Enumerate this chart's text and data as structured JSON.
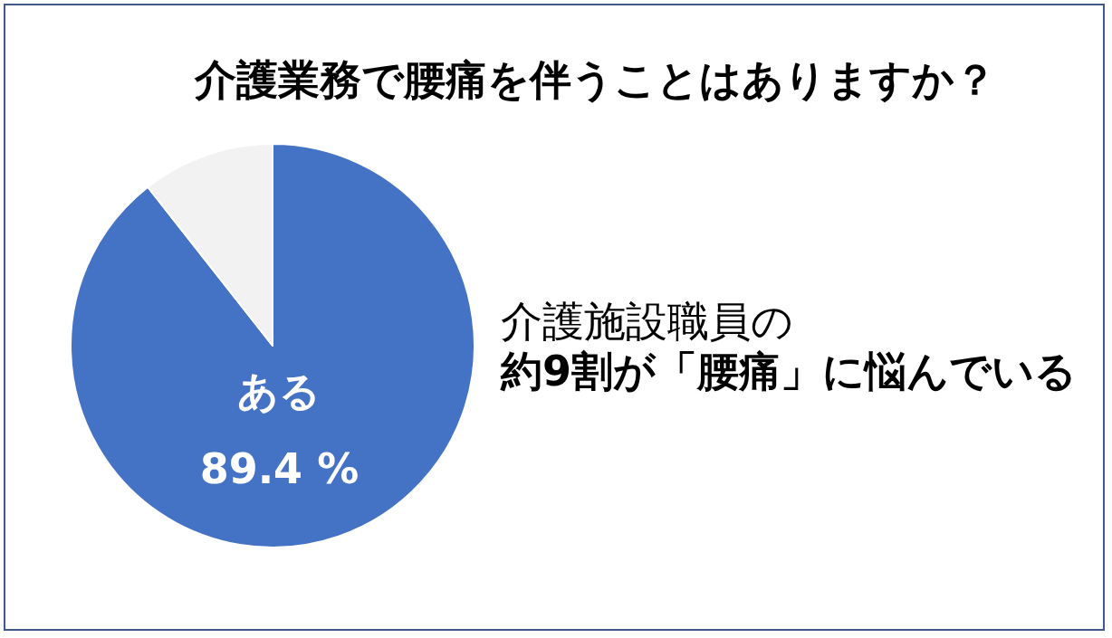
{
  "chart_data": {
    "type": "pie",
    "title": "介護業務で腰痛を伴うことはありますか？",
    "categories": [
      "ある",
      null
    ],
    "values": [
      89.4,
      10.6
    ],
    "colors": [
      "#4472c4",
      "#f2f2f2"
    ],
    "value_labels": [
      "89.4 %",
      null
    ],
    "annotations": [
      "介護施設職員の",
      "約9割が「腰痛」に悩んでいる"
    ],
    "legend": false
  }
}
